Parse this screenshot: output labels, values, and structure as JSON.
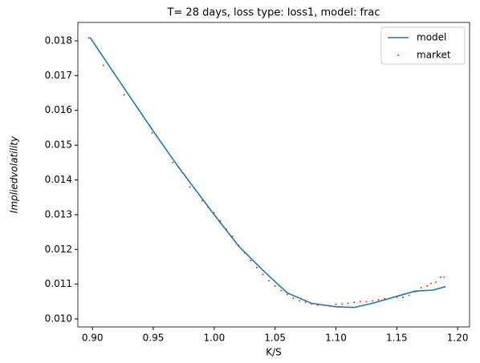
{
  "chart_data": {
    "type": "line",
    "title": "T= 28 days, loss type: loss1, model: frac",
    "xlabel": "K/S",
    "ylabel": "Impliedvolatility",
    "xlim": [
      0.888,
      1.2098
    ],
    "ylim": [
      0.00977,
      0.01853
    ],
    "xticks": [
      {
        "value": 0.9,
        "label": "0.90"
      },
      {
        "value": 0.95,
        "label": "0.95"
      },
      {
        "value": 1.0,
        "label": "1.00"
      },
      {
        "value": 1.05,
        "label": "1.05"
      },
      {
        "value": 1.1,
        "label": "1.10"
      },
      {
        "value": 1.15,
        "label": "1.15"
      },
      {
        "value": 1.2,
        "label": "1.20"
      }
    ],
    "yticks": [
      {
        "value": 0.01,
        "label": "0.010"
      },
      0.011,
      0.012,
      0.013,
      0.014,
      0.015,
      0.016,
      0.017,
      0.018
    ],
    "legend": "upper right",
    "series": [
      {
        "name": "model",
        "type": "line",
        "color": "#1f77b4",
        "x": [
          0.898,
          0.92,
          0.95,
          0.97,
          1.0,
          1.02,
          1.04,
          1.06,
          1.08,
          1.1,
          1.115,
          1.13,
          1.15,
          1.165,
          1.18,
          1.19
        ],
        "values": [
          0.0181,
          0.01695,
          0.0154,
          0.0144,
          0.013,
          0.0121,
          0.0114,
          0.01075,
          0.01045,
          0.01035,
          0.01033,
          0.01045,
          0.01065,
          0.0108,
          0.01083,
          0.01093
        ]
      },
      {
        "name": "market",
        "type": "scatter",
        "color": "#ff2a00",
        "x": [
          0.897,
          0.909,
          0.926,
          0.949,
          0.966,
          0.98,
          0.99,
          0.995,
          1.0,
          1.005,
          1.01,
          1.015,
          1.02,
          1.025,
          1.03,
          1.035,
          1.04,
          1.045,
          1.05,
          1.055,
          1.06,
          1.065,
          1.07,
          1.075,
          1.08,
          1.085,
          1.09,
          1.095,
          1.1,
          1.105,
          1.11,
          1.115,
          1.12,
          1.125,
          1.13,
          1.135,
          1.14,
          1.15,
          1.155,
          1.16,
          1.165,
          1.17,
          1.175,
          1.178,
          1.182,
          1.186,
          1.189
        ],
        "values": [
          0.01808,
          0.0173,
          0.01645,
          0.01535,
          0.0145,
          0.0138,
          0.0134,
          0.01322,
          0.01305,
          0.01282,
          0.01258,
          0.01238,
          0.01212,
          0.0119,
          0.01168,
          0.01148,
          0.01128,
          0.0111,
          0.01095,
          0.01082,
          0.0107,
          0.0106,
          0.01052,
          0.01048,
          0.01043,
          0.0104,
          0.0104,
          0.01038,
          0.01042,
          0.01043,
          0.01045,
          0.01048,
          0.0105,
          0.0105,
          0.01052,
          0.01055,
          0.01058,
          0.01063,
          0.01062,
          0.01068,
          0.01078,
          0.0109,
          0.01095,
          0.01102,
          0.01106,
          0.0112,
          0.0112
        ]
      }
    ]
  }
}
